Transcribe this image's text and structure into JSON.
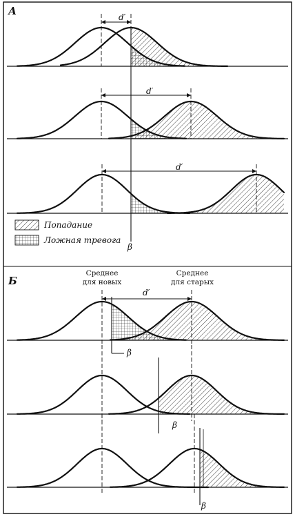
{
  "section_a": {
    "letter": "А",
    "panels": [
      {
        "dprime": "d′"
      },
      {
        "dprime": "d′"
      },
      {
        "dprime": "d′"
      }
    ],
    "beta": "β",
    "legend": {
      "hit": "Попадание",
      "false_alarm": "Ложная тревога"
    }
  },
  "section_b": {
    "letter": "Б",
    "mean_new": [
      "Среднее",
      "для новых"
    ],
    "mean_old": [
      "Среднее",
      "для старых"
    ],
    "dprime": "d′",
    "beta_labels": [
      "β",
      "β",
      "β"
    ]
  },
  "colors": {
    "ink": "#111111",
    "paper": "#ffffff"
  }
}
